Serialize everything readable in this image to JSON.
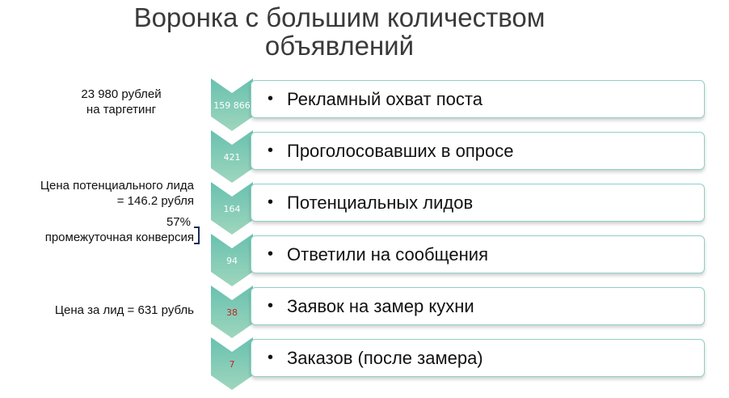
{
  "title": {
    "line1": "Воронка с большим количеством",
    "line2": "объявлений"
  },
  "annotations": {
    "budget_line1": "23 980 рублей",
    "budget_line2": "на таргетинг",
    "lead_price_line1": "Цена потенциального лида",
    "lead_price_line2": "= 146.2 рубля",
    "conversion_line1": "57%",
    "conversion_line2": "промежуточная конверсия",
    "price_per_lead": "Цена за лид = 631 рубль"
  },
  "colors": {
    "chevron_top": "#68c1b0",
    "chevron_bottom": "#9fd6bd",
    "box_border": "#8fd0c5",
    "value_white": "#ffffff",
    "value_red": "#cc2222",
    "bracket": "#1b2a5c"
  },
  "funnel": [
    {
      "value": "159 866",
      "label": "Рекламный охват поста",
      "value_color": "#ffffff"
    },
    {
      "value": "421",
      "label": "Проголосовавших в опросе",
      "value_color": "#ffffff"
    },
    {
      "value": "164",
      "label": "Потенциальных лидов",
      "value_color": "#ffffff"
    },
    {
      "value": "94",
      "label": "Ответили на сообщения",
      "value_color": "#ffffff"
    },
    {
      "value": "38",
      "label": "Заявок на замер кухни",
      "value_color": "#cc2222"
    },
    {
      "value": "7",
      "label": "Заказов  (после замера)",
      "value_color": "#cc2222"
    }
  ]
}
